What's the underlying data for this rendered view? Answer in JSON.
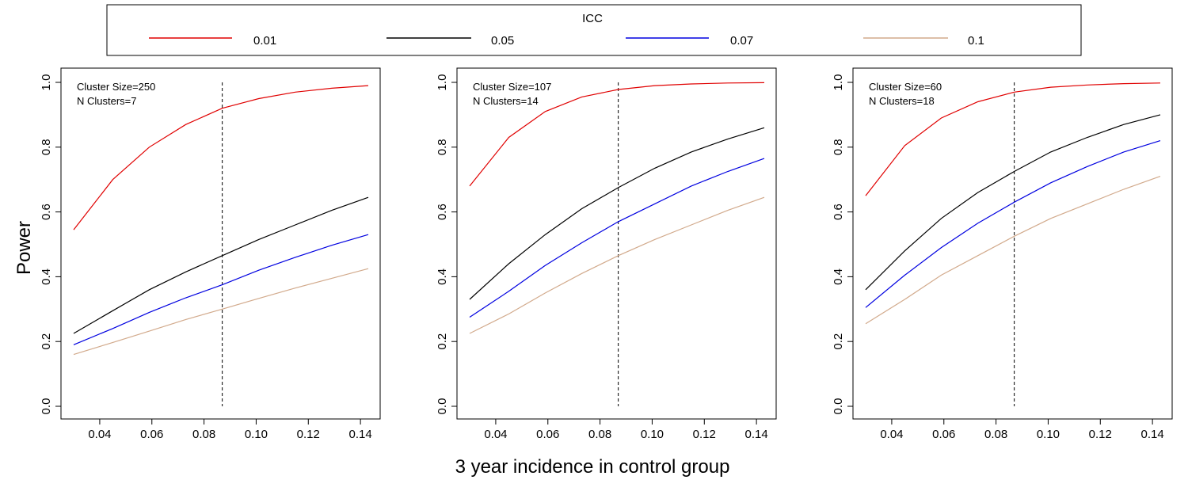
{
  "legend": {
    "title": "ICC",
    "entries": [
      {
        "label": "0.01",
        "color": "#e00000"
      },
      {
        "label": "0.05",
        "color": "#000000"
      },
      {
        "label": "0.07",
        "color": "#0000e0"
      },
      {
        "label": "0.1",
        "color": "#d2aa8c"
      }
    ]
  },
  "ylabel": "Power",
  "xlabel": "3 year incidence in control group",
  "chart_data": [
    {
      "type": "line",
      "annotation": [
        "Cluster Size=250",
        "N Clusters=7"
      ],
      "x": [
        0.03,
        0.045,
        0.059,
        0.073,
        0.087,
        0.101,
        0.115,
        0.129,
        0.143
      ],
      "xlim": [
        0.03,
        0.143
      ],
      "ylim": [
        0.0,
        1.0
      ],
      "xticks": [
        0.04,
        0.06,
        0.08,
        0.1,
        0.12,
        0.14
      ],
      "xtick_labels": [
        "0.04",
        "0.06",
        "0.08",
        "0.10",
        "0.12",
        "0.14"
      ],
      "yticks": [
        0.0,
        0.2,
        0.4,
        0.6,
        0.8,
        1.0
      ],
      "ytick_labels": [
        "0.0",
        "0.2",
        "0.4",
        "0.6",
        "0.8",
        "1.0"
      ],
      "vline": 0.087,
      "series": [
        {
          "name": "0.01",
          "values": [
            0.545,
            0.7,
            0.8,
            0.87,
            0.92,
            0.95,
            0.97,
            0.982,
            0.99
          ]
        },
        {
          "name": "0.05",
          "values": [
            0.225,
            0.295,
            0.36,
            0.415,
            0.465,
            0.515,
            0.56,
            0.605,
            0.645
          ]
        },
        {
          "name": "0.07",
          "values": [
            0.19,
            0.24,
            0.29,
            0.335,
            0.375,
            0.42,
            0.46,
            0.497,
            0.53
          ]
        },
        {
          "name": "0.1",
          "values": [
            0.16,
            0.197,
            0.232,
            0.268,
            0.3,
            0.333,
            0.365,
            0.395,
            0.425
          ]
        }
      ]
    },
    {
      "type": "line",
      "annotation": [
        "Cluster Size=107",
        "N Clusters=14"
      ],
      "x": [
        0.03,
        0.045,
        0.059,
        0.073,
        0.087,
        0.101,
        0.115,
        0.129,
        0.143
      ],
      "xlim": [
        0.03,
        0.143
      ],
      "ylim": [
        0.0,
        1.0
      ],
      "xticks": [
        0.04,
        0.06,
        0.08,
        0.1,
        0.12,
        0.14
      ],
      "xtick_labels": [
        "0.04",
        "0.06",
        "0.08",
        "0.10",
        "0.12",
        "0.14"
      ],
      "yticks": [
        0.0,
        0.2,
        0.4,
        0.6,
        0.8,
        1.0
      ],
      "ytick_labels": [
        "0.0",
        "0.2",
        "0.4",
        "0.6",
        "0.8",
        "1.0"
      ],
      "vline": 0.087,
      "series": [
        {
          "name": "0.01",
          "values": [
            0.68,
            0.83,
            0.91,
            0.955,
            0.978,
            0.99,
            0.995,
            0.998,
            0.999
          ]
        },
        {
          "name": "0.05",
          "values": [
            0.33,
            0.44,
            0.53,
            0.61,
            0.675,
            0.735,
            0.785,
            0.825,
            0.86
          ]
        },
        {
          "name": "0.07",
          "values": [
            0.275,
            0.355,
            0.435,
            0.505,
            0.57,
            0.625,
            0.68,
            0.725,
            0.765
          ]
        },
        {
          "name": "0.1",
          "values": [
            0.225,
            0.285,
            0.35,
            0.41,
            0.465,
            0.515,
            0.56,
            0.605,
            0.645
          ]
        }
      ]
    },
    {
      "type": "line",
      "annotation": [
        "Cluster Size=60",
        "N Clusters=18"
      ],
      "x": [
        0.03,
        0.045,
        0.059,
        0.073,
        0.087,
        0.101,
        0.115,
        0.129,
        0.143
      ],
      "xlim": [
        0.03,
        0.143
      ],
      "ylim": [
        0.0,
        1.0
      ],
      "xticks": [
        0.04,
        0.06,
        0.08,
        0.1,
        0.12,
        0.14
      ],
      "xtick_labels": [
        "0.04",
        "0.06",
        "0.08",
        "0.10",
        "0.12",
        "0.14"
      ],
      "yticks": [
        0.0,
        0.2,
        0.4,
        0.6,
        0.8,
        1.0
      ],
      "ytick_labels": [
        "0.0",
        "0.2",
        "0.4",
        "0.6",
        "0.8",
        "1.0"
      ],
      "vline": 0.087,
      "series": [
        {
          "name": "0.01",
          "values": [
            0.65,
            0.805,
            0.89,
            0.94,
            0.97,
            0.985,
            0.992,
            0.996,
            0.998
          ]
        },
        {
          "name": "0.05",
          "values": [
            0.36,
            0.48,
            0.58,
            0.66,
            0.725,
            0.785,
            0.83,
            0.87,
            0.9
          ]
        },
        {
          "name": "0.07",
          "values": [
            0.305,
            0.405,
            0.49,
            0.565,
            0.63,
            0.69,
            0.74,
            0.785,
            0.82
          ]
        },
        {
          "name": "0.1",
          "values": [
            0.255,
            0.33,
            0.405,
            0.465,
            0.525,
            0.58,
            0.625,
            0.67,
            0.71
          ]
        }
      ]
    }
  ]
}
